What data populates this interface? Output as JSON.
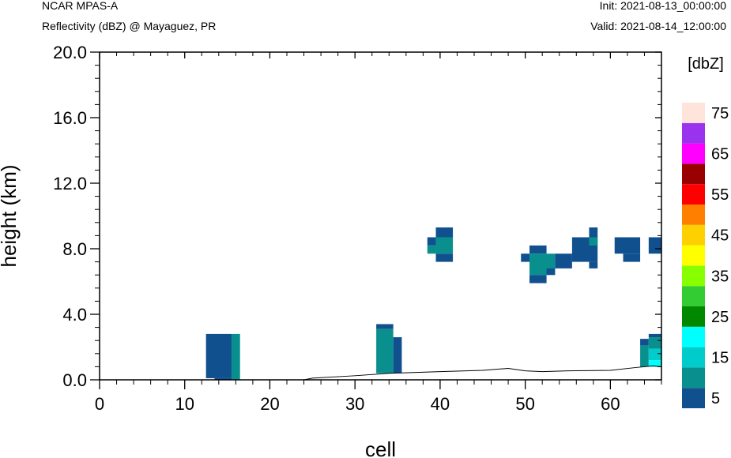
{
  "header": {
    "model": "NCAR MPAS-A",
    "subtitle": "Reflectivity (dBZ) @ Mayaguez, PR",
    "init": "Init: 2021-08-13_00:00:00",
    "valid": "Valid: 2021-08-14_12:00:00"
  },
  "chart_data": {
    "type": "heatmap",
    "title": "Reflectivity (dBZ) @ Mayaguez, PR",
    "xlabel": "cell",
    "ylabel": "height (km)",
    "xlim": [
      0,
      66
    ],
    "ylim": [
      0,
      20
    ],
    "x_ticks": [
      "0",
      "10",
      "20",
      "30",
      "40",
      "50",
      "60"
    ],
    "y_ticks": [
      "0.0",
      "4.0",
      "8.0",
      "12.0",
      "16.0",
      "20.0"
    ],
    "grid": false,
    "colorbar": {
      "title": "[dbZ]",
      "labels": [
        "5",
        "15",
        "25",
        "35",
        "45",
        "55",
        "65",
        "75"
      ],
      "colors": [
        "#10508f",
        "#0a8f8f",
        "#00cccc",
        "#00ffff",
        "#008800",
        "#33cc33",
        "#88ff00",
        "#ffff00",
        "#ffd000",
        "#ff8000",
        "#ff0000",
        "#990000",
        "#ff00ff",
        "#9933ee",
        "#ffe4dc"
      ]
    },
    "terrain": [
      [
        0,
        0
      ],
      [
        24,
        0
      ],
      [
        25,
        0.1
      ],
      [
        30,
        0.25
      ],
      [
        34,
        0.4
      ],
      [
        40,
        0.5
      ],
      [
        45,
        0.58
      ],
      [
        48,
        0.7
      ],
      [
        50,
        0.55
      ],
      [
        52,
        0.5
      ],
      [
        55,
        0.55
      ],
      [
        60,
        0.58
      ],
      [
        63,
        0.75
      ],
      [
        65,
        0.85
      ],
      [
        66,
        0.8
      ]
    ],
    "cells": [
      {
        "x0": 12.5,
        "x1": 15.5,
        "y0": 0.1,
        "y1": 2.8,
        "color": "#10508f"
      },
      {
        "x0": 13.5,
        "x1": 15.5,
        "y0": 0.0,
        "y1": 0.1,
        "color": "#10508f"
      },
      {
        "x0": 15.5,
        "x1": 16.5,
        "y0": 0.0,
        "y1": 2.8,
        "color": "#0a8f8f"
      },
      {
        "x0": 32.5,
        "x1": 34.5,
        "y0": 3.1,
        "y1": 3.4,
        "color": "#10508f"
      },
      {
        "x0": 32.5,
        "x1": 34.5,
        "y0": 0.4,
        "y1": 3.1,
        "color": "#0a8f8f"
      },
      {
        "x0": 34.5,
        "x1": 35.5,
        "y0": 0.4,
        "y1": 2.6,
        "color": "#10508f"
      },
      {
        "x0": 39.5,
        "x1": 41.5,
        "y0": 8.7,
        "y1": 9.3,
        "color": "#10508f"
      },
      {
        "x0": 38.5,
        "x1": 39.5,
        "y0": 8.2,
        "y1": 8.7,
        "color": "#10508f"
      },
      {
        "x0": 39.5,
        "x1": 41.5,
        "y0": 7.7,
        "y1": 8.7,
        "color": "#0a8f8f"
      },
      {
        "x0": 38.5,
        "x1": 39.5,
        "y0": 7.7,
        "y1": 8.2,
        "color": "#0a8f8f"
      },
      {
        "x0": 39.5,
        "x1": 41.5,
        "y0": 7.2,
        "y1": 7.7,
        "color": "#10508f"
      },
      {
        "x0": 49.5,
        "x1": 50.5,
        "y0": 7.2,
        "y1": 7.7,
        "color": "#10508f"
      },
      {
        "x0": 50.5,
        "x1": 52.5,
        "y0": 7.7,
        "y1": 8.2,
        "color": "#10508f"
      },
      {
        "x0": 50.5,
        "x1": 53.5,
        "y0": 6.4,
        "y1": 7.7,
        "color": "#0a8f8f"
      },
      {
        "x0": 50.5,
        "x1": 52.5,
        "y0": 5.9,
        "y1": 6.4,
        "color": "#10508f"
      },
      {
        "x0": 53.5,
        "x1": 55.5,
        "y0": 6.8,
        "y1": 7.7,
        "color": "#10508f"
      },
      {
        "x0": 52.5,
        "x1": 53.5,
        "y0": 6.4,
        "y1": 6.8,
        "color": "#10508f"
      },
      {
        "x0": 55.5,
        "x1": 58.5,
        "y0": 7.2,
        "y1": 8.7,
        "color": "#10508f"
      },
      {
        "x0": 57.5,
        "x1": 58.5,
        "y0": 8.7,
        "y1": 9.3,
        "color": "#10508f"
      },
      {
        "x0": 57.5,
        "x1": 58.5,
        "y0": 8.2,
        "y1": 8.7,
        "color": "#0a8f8f"
      },
      {
        "x0": 57.5,
        "x1": 58.5,
        "y0": 6.8,
        "y1": 7.2,
        "color": "#10508f"
      },
      {
        "x0": 60.5,
        "x1": 63.5,
        "y0": 7.7,
        "y1": 8.7,
        "color": "#10508f"
      },
      {
        "x0": 61.5,
        "x1": 63.5,
        "y0": 7.2,
        "y1": 7.7,
        "color": "#10508f"
      },
      {
        "x0": 64.5,
        "x1": 66.5,
        "y0": 7.7,
        "y1": 8.7,
        "color": "#10508f"
      },
      {
        "x0": 63.5,
        "x1": 64.5,
        "y0": 2.1,
        "y1": 2.5,
        "color": "#10508f"
      },
      {
        "x0": 63.5,
        "x1": 64.5,
        "y0": 0.8,
        "y1": 2.1,
        "color": "#0a8f8f"
      },
      {
        "x0": 64.5,
        "x1": 66.5,
        "y0": 2.6,
        "y1": 2.8,
        "color": "#10508f"
      },
      {
        "x0": 64.5,
        "x1": 66.5,
        "y0": 1.9,
        "y1": 2.6,
        "color": "#0a8f8f"
      },
      {
        "x0": 64.5,
        "x1": 66.5,
        "y0": 1.2,
        "y1": 1.9,
        "color": "#00cccc"
      },
      {
        "x0": 64.5,
        "x1": 66.5,
        "y0": 0.8,
        "y1": 1.2,
        "color": "#00ffff"
      }
    ]
  }
}
